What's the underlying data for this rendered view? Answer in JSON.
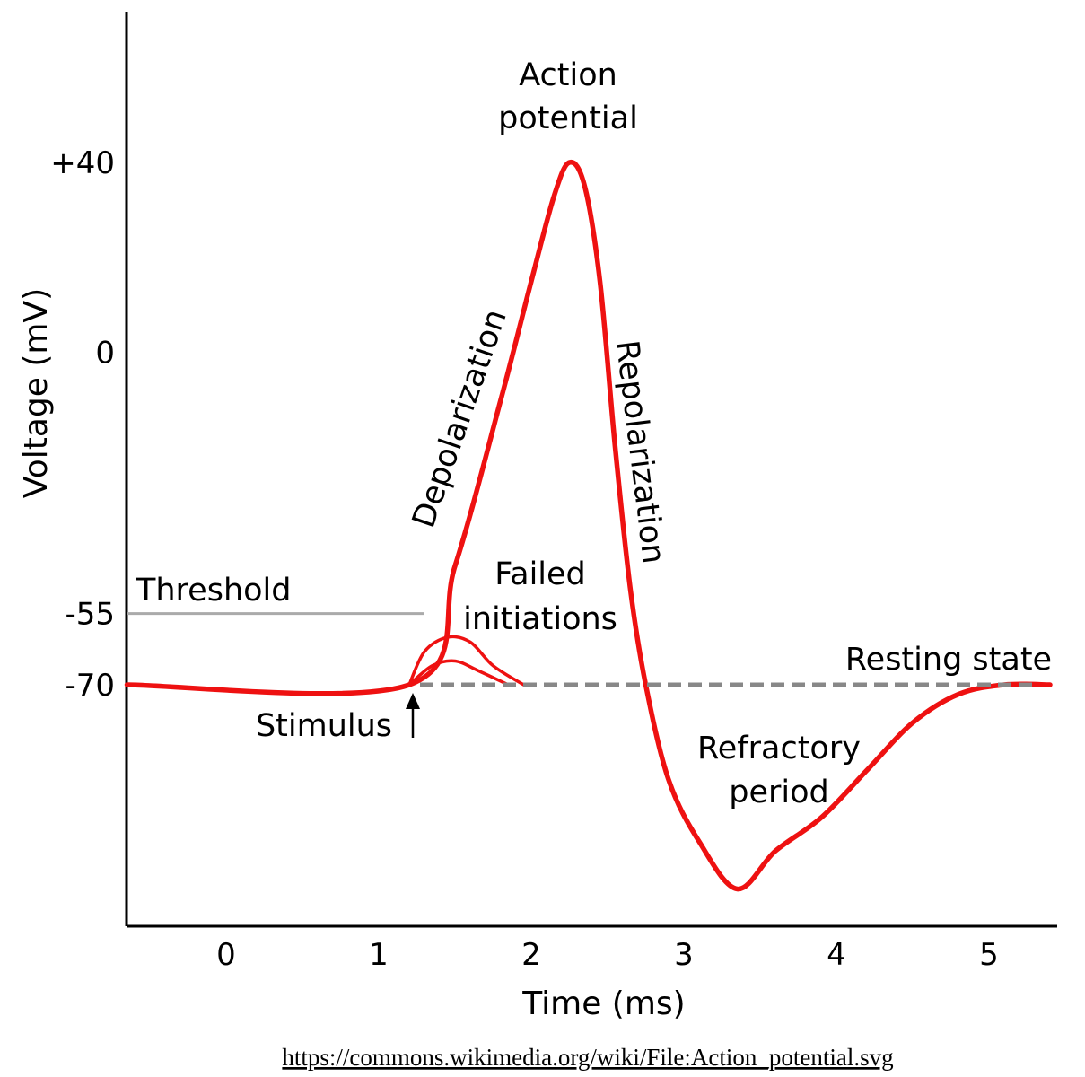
{
  "chart_data": {
    "type": "line",
    "xlabel": "Time (ms)",
    "ylabel": "Voltage (mV)",
    "xlim": [
      -0.65,
      5.4
    ],
    "ylim": [
      -135,
      70
    ],
    "x_ticks": [
      0,
      1,
      2,
      3,
      4,
      5
    ],
    "y_ticks": [
      40,
      0,
      -55,
      -70
    ],
    "y_tick_labels": [
      "+40",
      "0",
      "-55",
      "-70"
    ],
    "series": [
      {
        "points": [
          [
            -0.65,
            -70
          ],
          [
            1.2,
            -70
          ],
          [
            1.5,
            -45
          ],
          [
            1.8,
            -10
          ],
          [
            2.0,
            15
          ],
          [
            2.15,
            33
          ],
          [
            2.25,
            40
          ],
          [
            2.35,
            35
          ],
          [
            2.45,
            15
          ],
          [
            2.55,
            -20
          ],
          [
            2.65,
            -50
          ],
          [
            2.75,
            -70
          ],
          [
            2.9,
            -90
          ],
          [
            3.1,
            -103
          ],
          [
            3.35,
            -113
          ],
          [
            3.6,
            -105
          ],
          [
            3.9,
            -98
          ],
          [
            4.2,
            -88
          ],
          [
            4.5,
            -78
          ],
          [
            4.8,
            -72
          ],
          [
            5.1,
            -70
          ],
          [
            5.4,
            -70
          ]
        ],
        "color": "#ee1111"
      },
      {
        "points": [
          [
            1.2,
            -70
          ],
          [
            1.3,
            -63
          ],
          [
            1.45,
            -60
          ],
          [
            1.6,
            -61
          ],
          [
            1.75,
            -66
          ],
          [
            1.95,
            -70
          ]
        ],
        "color": "#ee1111"
      },
      {
        "points": [
          [
            1.2,
            -70
          ],
          [
            1.35,
            -66
          ],
          [
            1.5,
            -65
          ],
          [
            1.65,
            -67
          ],
          [
            1.85,
            -70
          ]
        ],
        "color": "#ee1111"
      }
    ],
    "reference_lines": [
      {
        "label": "Threshold",
        "y": -55,
        "x_range": [
          -0.65,
          1.3
        ],
        "color": "#aaaaaa"
      },
      {
        "label": "Resting state",
        "y": -70,
        "x_range": [
          1.2,
          5.4
        ],
        "color": "#888888",
        "style": "dashed"
      }
    ],
    "annotations": [
      {
        "lines": [
          "Action",
          "potential"
        ]
      },
      {
        "lines": [
          "Depolarization"
        ]
      },
      {
        "lines": [
          "Repolarization"
        ]
      },
      {
        "lines": [
          "Failed",
          "initiations"
        ]
      },
      {
        "lines": [
          "Threshold"
        ]
      },
      {
        "lines": [
          "Resting state"
        ]
      },
      {
        "lines": [
          "Stimulus"
        ]
      },
      {
        "lines": [
          "Refractory",
          "period"
        ]
      }
    ],
    "grid": false,
    "legend": "none"
  },
  "source_link": "https://commons.wikimedia.org/wiki/File:Action_potential.svg"
}
